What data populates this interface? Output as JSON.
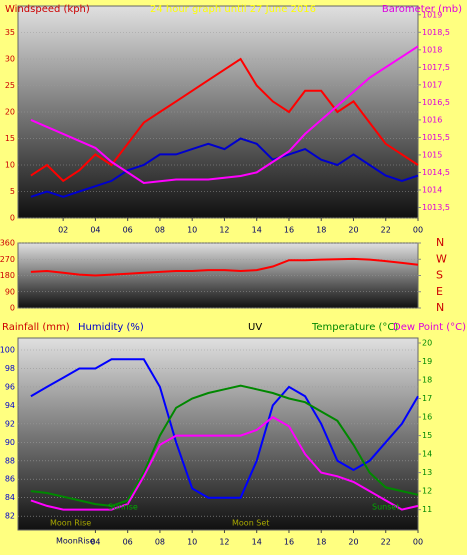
{
  "chart_data": [
    {
      "type": "line",
      "labels": [
        {
          "text": "Windspeed (kph)",
          "color": "#cc0000"
        },
        {
          "text": "24 hour graph until 27 June 2016",
          "color": "#ffff00"
        },
        {
          "text": "Barometer (mb)",
          "color": "#dd00dd"
        }
      ],
      "x": [
        0,
        1,
        2,
        3,
        4,
        5,
        6,
        7,
        8,
        9,
        10,
        11,
        12,
        13,
        14,
        15,
        16,
        17,
        18,
        19,
        20,
        21,
        22,
        23,
        24
      ],
      "xlim": [
        -0.8,
        24
      ],
      "xticks": [
        {
          "value": 2,
          "label": "02"
        },
        {
          "value": 4,
          "label": "04"
        },
        {
          "value": 6,
          "label": "06"
        },
        {
          "value": 8,
          "label": "08"
        },
        10,
        12,
        14,
        16,
        18,
        20,
        22,
        {
          "value": 24,
          "label": "00"
        }
      ],
      "ylim": [
        0,
        40
      ],
      "yticks": [
        0,
        5,
        10,
        15,
        20,
        25,
        30,
        35
      ],
      "y2lim": [
        1013.2,
        1019.25
      ],
      "y2ticks": [
        {
          "value": 1013.5,
          "label": "1013,5"
        },
        1014,
        {
          "value": 1014.5,
          "label": "1014,5"
        },
        1015,
        {
          "value": 1015.5,
          "label": "1015,5"
        },
        1016,
        {
          "value": 1016.5,
          "label": "1016,5"
        },
        1017,
        {
          "value": 1017.5,
          "label": "1017,5"
        },
        1018,
        {
          "value": 1018.5,
          "label": "1018,5"
        },
        1019
      ],
      "grid": true,
      "series": [
        {
          "color": "#ff0000",
          "values": [
            8,
            10,
            7,
            9,
            12,
            10,
            14,
            18,
            20,
            22,
            24,
            26,
            28,
            30,
            25,
            22,
            20,
            24,
            24,
            20,
            22,
            18,
            14,
            12,
            10
          ]
        },
        {
          "color": "#0000cc",
          "values": [
            4,
            5,
            4,
            5,
            6,
            7,
            9,
            10,
            12,
            12,
            13,
            14,
            13,
            15,
            14,
            11,
            12,
            13,
            11,
            10,
            12,
            10,
            8,
            7,
            8
          ]
        },
        {
          "color": "#ff00ff",
          "axis": "y2",
          "values": [
            1016,
            1015.8,
            1015.6,
            1015.4,
            1015.2,
            1014.8,
            1014.5,
            1014.2,
            1014.25,
            1014.3,
            1014.3,
            1014.3,
            1014.35,
            1014.4,
            1014.5,
            1014.8,
            1015.1,
            1015.6,
            1016,
            1016.4,
            1016.8,
            1017.2,
            1017.5,
            1017.8,
            1018.1
          ]
        }
      ]
    },
    {
      "type": "line",
      "x": [
        0,
        1,
        2,
        3,
        4,
        5,
        6,
        7,
        8,
        9,
        10,
        11,
        12,
        13,
        14,
        15,
        16,
        17,
        18,
        19,
        20,
        21,
        22,
        23,
        24
      ],
      "xlim": [
        -0.8,
        24
      ],
      "ylim": [
        0,
        360
      ],
      "yticks": [
        0,
        90,
        180,
        270,
        360
      ],
      "y2lim": [
        0,
        360
      ],
      "y2ticks": [
        {
          "value": 360,
          "label": "N"
        },
        {
          "value": 270,
          "label": "W"
        },
        {
          "value": 180,
          "label": "S"
        },
        {
          "value": 90,
          "label": "E"
        },
        {
          "value": 0,
          "label": "N"
        }
      ],
      "grid": true,
      "series": [
        {
          "color": "#ff0000",
          "values": [
            200,
            205,
            195,
            185,
            180,
            185,
            190,
            195,
            200,
            205,
            205,
            210,
            210,
            205,
            210,
            230,
            265,
            265,
            268,
            270,
            272,
            268,
            260,
            250,
            240
          ]
        }
      ]
    },
    {
      "type": "line",
      "labels": [
        {
          "text": "Rainfall (mm)",
          "color": "#cc0000"
        },
        {
          "text": "Humidity (%)",
          "color": "#0000cc"
        },
        {
          "text": "UV",
          "color": "#000000"
        },
        {
          "text": "Temperature (°C)",
          "color": "#008800"
        },
        {
          "text": "Dew Point (°C)",
          "color": "#dd00dd"
        }
      ],
      "annotations": [
        {
          "text": "Sunrise",
          "color": "#00aa00"
        },
        {
          "text": "Sunset",
          "color": "#00aa00"
        },
        {
          "text": "Moon Rise",
          "color": "#aaaa00"
        },
        {
          "text": "Moon Set",
          "color": "#aaaa00"
        },
        {
          "text": "MoonRise",
          "color": "#000066"
        }
      ],
      "x": [
        0,
        1,
        2,
        3,
        4,
        5,
        6,
        7,
        8,
        9,
        10,
        11,
        12,
        13,
        14,
        15,
        16,
        17,
        18,
        19,
        20,
        21,
        22,
        23,
        24
      ],
      "xlim": [
        -0.8,
        24
      ],
      "xticks": [
        {
          "value": 4,
          "label": "04"
        },
        {
          "value": 6,
          "label": "06"
        },
        {
          "value": 8,
          "label": "08"
        },
        10,
        12,
        14,
        16,
        18,
        20,
        22,
        {
          "value": 24,
          "label": "00"
        }
      ],
      "ylim": [
        80.5,
        101.3
      ],
      "yticks": [
        82,
        84,
        86,
        88,
        90,
        92,
        94,
        96,
        98,
        100
      ],
      "y2lim": [
        9.9,
        20.27
      ],
      "y2ticks": [
        11,
        12,
        13,
        14,
        15,
        16,
        17,
        18,
        19,
        20
      ],
      "grid": true,
      "series": [
        {
          "color": "#0000ff",
          "values": [
            95,
            96,
            97,
            98,
            98,
            99,
            99,
            99,
            96,
            90,
            85,
            84,
            84,
            84,
            88,
            94,
            96,
            95,
            92,
            88,
            87,
            88,
            90,
            92,
            95
          ]
        },
        {
          "color": "#008800",
          "axis": "y2",
          "values": [
            12,
            11.9,
            11.7,
            11.5,
            11.3,
            11.2,
            11.5,
            13,
            15,
            16.5,
            17,
            17.3,
            17.5,
            17.7,
            17.5,
            17.3,
            17,
            16.8,
            16.3,
            15.8,
            14.5,
            13,
            12.2,
            12,
            11.8
          ]
        },
        {
          "color": "#ff00ff",
          "axis": "y2",
          "values": [
            11.5,
            11.2,
            11,
            11,
            11,
            11,
            11.3,
            12.8,
            14.5,
            15,
            15,
            15,
            15,
            15,
            15.3,
            16,
            15.5,
            14,
            13,
            12.8,
            12.5,
            12,
            11.5,
            11,
            11.2
          ]
        }
      ]
    }
  ]
}
